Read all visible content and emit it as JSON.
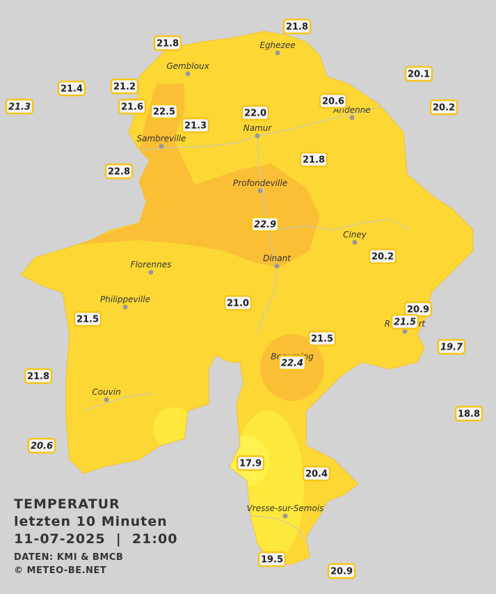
{
  "title": [
    "TEMPERATUR",
    "letzten 10 Minuten",
    "11-07-2025  |  21:00"
  ],
  "credits": [
    "DATEN: KMI & BMCB",
    "© METEO-BE.NET"
  ],
  "cities": [
    "Eghezee",
    "Gembloux",
    "Andenne",
    "Namur",
    "Sambreville",
    "Profondeville",
    "Ciney",
    "Dinant",
    "Florennes",
    "Philippeville",
    "Rochefort",
    "Beauraing",
    "Couvin",
    "Vresse-sur-Semois"
  ],
  "stations": [
    {
      "value": "21.8"
    },
    {
      "value": "21.8"
    },
    {
      "value": "20.1"
    },
    {
      "value": "21.4"
    },
    {
      "value": "21.2"
    },
    {
      "value": "20.6"
    },
    {
      "value": "20.2"
    },
    {
      "value": "21.3",
      "italic": true
    },
    {
      "value": "21.6"
    },
    {
      "value": "22.5"
    },
    {
      "value": "22.0"
    },
    {
      "value": "21.3"
    },
    {
      "value": "21.8"
    },
    {
      "value": "22.8"
    },
    {
      "value": "22.9",
      "italic": true
    },
    {
      "value": "20.2"
    },
    {
      "value": "21.0"
    },
    {
      "value": "20.9"
    },
    {
      "value": "21.5",
      "italic": true
    },
    {
      "value": "21.5"
    },
    {
      "value": "21.5"
    },
    {
      "value": "19.7",
      "italic": true
    },
    {
      "value": "22.4",
      "italic": true
    },
    {
      "value": "21.8"
    },
    {
      "value": "18.8"
    },
    {
      "value": "20.6",
      "italic": true
    },
    {
      "value": "17.9"
    },
    {
      "value": "20.4"
    },
    {
      "value": "19.5"
    },
    {
      "value": "20.9"
    }
  ]
}
